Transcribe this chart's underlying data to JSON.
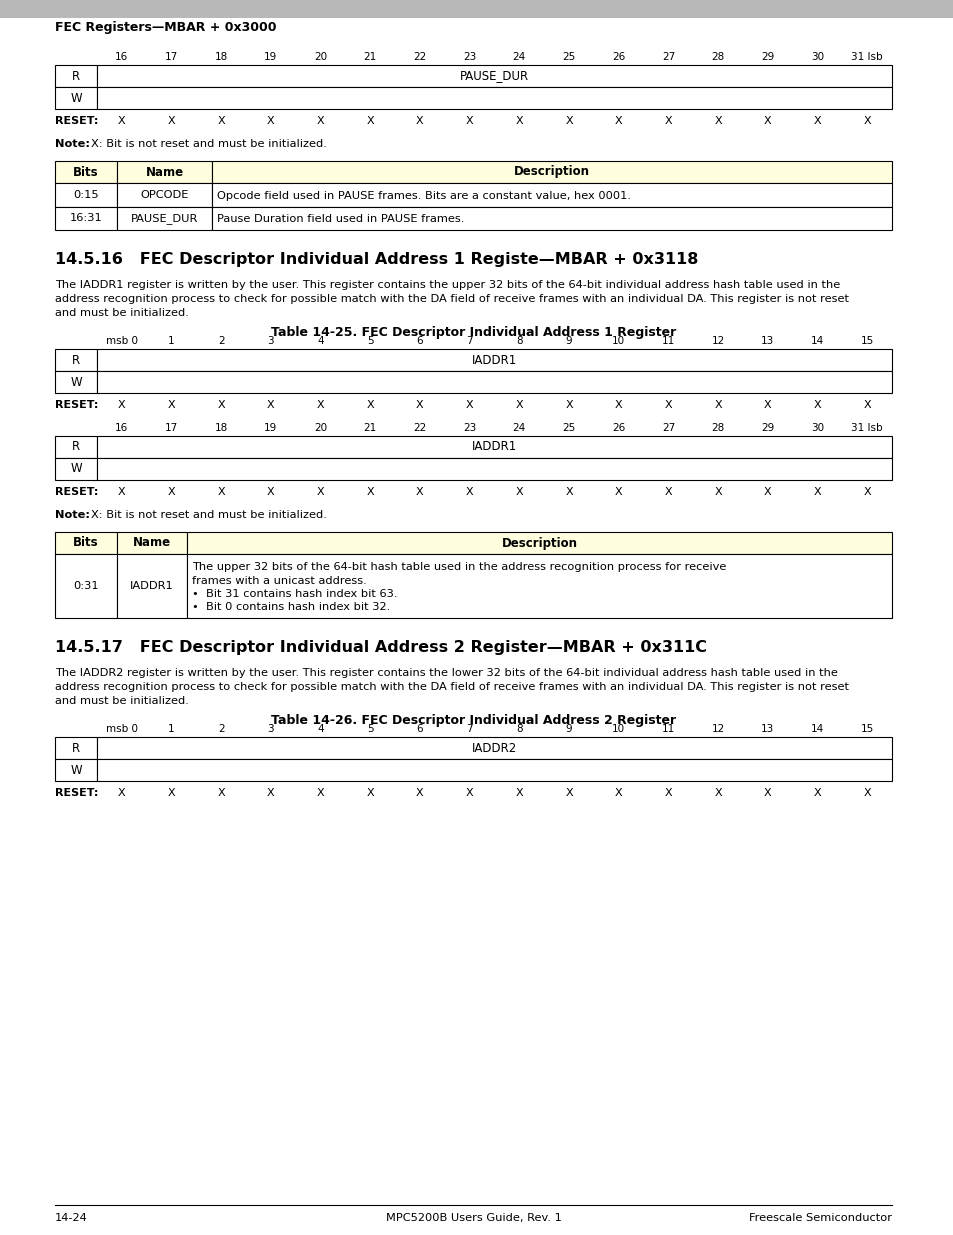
{
  "page_bg": "#ffffff",
  "header_bar_color": "#b0b0b0",
  "header_text": "FEC Registers—MBAR + 0x3000",
  "sec1_reg_labels": [
    "16",
    "17",
    "18",
    "19",
    "20",
    "21",
    "22",
    "23",
    "24",
    "25",
    "26",
    "27",
    "28",
    "29",
    "30",
    "31 lsb"
  ],
  "sec1_reg_field": "PAUSE_DUR",
  "sec1_reset": [
    "X",
    "X",
    "X",
    "X",
    "X",
    "X",
    "X",
    "X",
    "X",
    "X",
    "X",
    "X",
    "X",
    "X",
    "X",
    "X"
  ],
  "note1": "X: Bit is not reset and must be initialized.",
  "table1_rows": [
    [
      "0:15",
      "OPCODE",
      "Opcode field used in PAUSE frames. Bits are a constant value, hex 0001."
    ],
    [
      "16:31",
      "PAUSE_DUR",
      "Pause Duration field used in PAUSE frames."
    ]
  ],
  "sec2_title": "14.5.16   FEC Descriptor Individual Address 1 Registe—MBAR + 0x3118",
  "sec2_body1": "The IADDR1 register is written by the user. This register contains the upper 32 bits of the 64-bit individual address hash table used in the",
  "sec2_body2": "address recognition process to check for possible match with the DA field of receive frames with an individual DA. This register is not reset",
  "sec2_body3": "and must be initialized.",
  "table2_title": "Table 14-25. FEC Descriptor Individual Address 1 Register",
  "sec2_reg_msb_labels": [
    "msb 0",
    "1",
    "2",
    "3",
    "4",
    "5",
    "6",
    "7",
    "8",
    "9",
    "10",
    "11",
    "12",
    "13",
    "14",
    "15"
  ],
  "sec2_reg_msb_field": "IADDR1",
  "sec2_reg_msb_reset": [
    "X",
    "X",
    "X",
    "X",
    "X",
    "X",
    "X",
    "X",
    "X",
    "X",
    "X",
    "X",
    "X",
    "X",
    "X",
    "X"
  ],
  "sec2_reg_lsb_labels": [
    "16",
    "17",
    "18",
    "19",
    "20",
    "21",
    "22",
    "23",
    "24",
    "25",
    "26",
    "27",
    "28",
    "29",
    "30",
    "31 lsb"
  ],
  "sec2_reg_lsb_field": "IADDR1",
  "sec2_reg_lsb_reset": [
    "X",
    "X",
    "X",
    "X",
    "X",
    "X",
    "X",
    "X",
    "X",
    "X",
    "X",
    "X",
    "X",
    "X",
    "X",
    "X"
  ],
  "note2": "X: Bit is not reset and must be initialized.",
  "table3_bits": "0:31",
  "table3_name": "IADDR1",
  "table3_desc_lines": [
    "The upper 32 bits of the 64-bit hash table used in the address recognition process for receive",
    "frames with a unicast address.",
    "•  Bit 31 contains hash index bit 63.",
    "•  Bit 0 contains hash index bit 32."
  ],
  "sec3_title": "14.5.17   FEC Descriptor Individual Address 2 Register—MBAR + 0x311C",
  "sec3_body1": "The IADDR2 register is written by the user. This register contains the lower 32 bits of the 64-bit individual address hash table used in the",
  "sec3_body2": "address recognition process to check for possible match with the DA field of receive frames with an individual DA. This register is not reset",
  "sec3_body3": "and must be initialized.",
  "table4_title": "Table 14-26. FEC Descriptor Individual Address 2 Register",
  "sec3_reg_msb_labels": [
    "msb 0",
    "1",
    "2",
    "3",
    "4",
    "5",
    "6",
    "7",
    "8",
    "9",
    "10",
    "11",
    "12",
    "13",
    "14",
    "15"
  ],
  "sec3_reg_msb_field": "IADDR2",
  "sec3_reg_msb_reset": [
    "X",
    "X",
    "X",
    "X",
    "X",
    "X",
    "X",
    "X",
    "X",
    "X",
    "X",
    "X",
    "X",
    "X",
    "X",
    "X"
  ],
  "footer_left": "14-24",
  "footer_center": "MPC5200B Users Guide, Rev. 1",
  "footer_right": "Freescale Semiconductor"
}
